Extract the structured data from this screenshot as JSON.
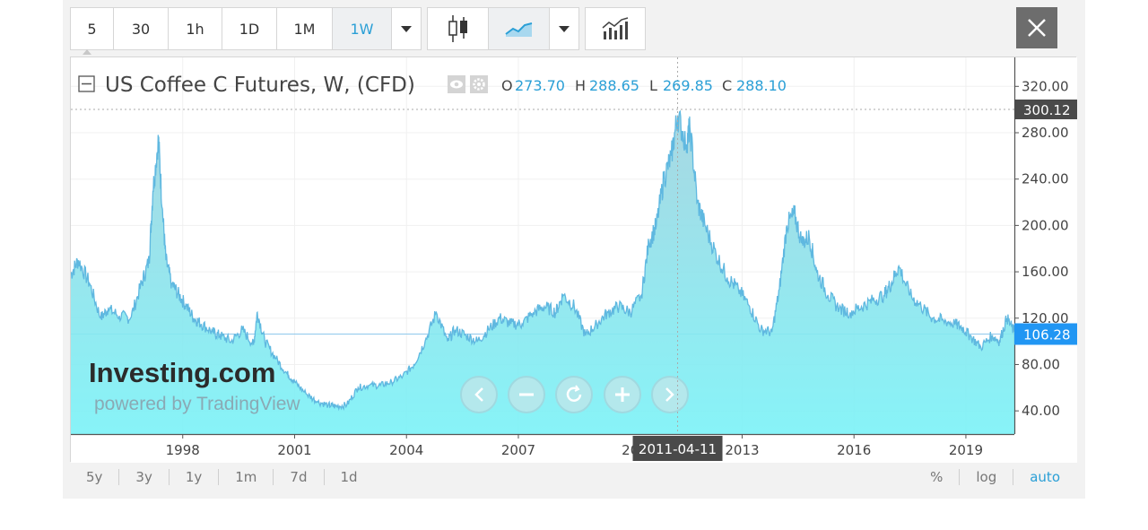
{
  "toolbar": {
    "intervals": [
      "5",
      "30",
      "1h",
      "1D",
      "1M",
      "1W"
    ],
    "active_interval": "1W"
  },
  "legend": {
    "title": "US Coffee C Futures, W, (CFD)",
    "o_label": "O",
    "o_value": "273.70",
    "h_label": "H",
    "h_value": "288.65",
    "l_label": "L",
    "l_value": "269.85",
    "c_label": "C",
    "c_value": "288.10"
  },
  "watermark": {
    "logo": "Investing.com",
    "powered": "powered by TradingView"
  },
  "crosshair": {
    "price_label": "300.12",
    "date_label": "2011-04-11",
    "price": 300.12,
    "date_year": 2011.27
  },
  "last_price": {
    "label": "106.28",
    "value": 106.28
  },
  "bottom_bar": {
    "ranges": [
      "5y",
      "3y",
      "1y",
      "1m",
      "7d",
      "1d"
    ],
    "right": [
      "%",
      "log",
      "auto"
    ],
    "active_right": "auto"
  },
  "colors": {
    "accent": "#2a9fd6",
    "line": "#5fb8e0",
    "fill_top": "#9fd3df",
    "fill_bottom": "#7af2f7",
    "price_tag": "#2196f3",
    "crosshair_tag": "#4a4a4a"
  },
  "chart_data": {
    "type": "area",
    "title": "US Coffee C Futures, W, (CFD)",
    "xlabel": "",
    "ylabel": "",
    "ylim": [
      20,
      345
    ],
    "xlim": [
      1995.0,
      2020.3
    ],
    "y_ticks": [
      40,
      80,
      120,
      160,
      200,
      240,
      280,
      320
    ],
    "y_tick_labels": [
      "40.00",
      "80.00",
      "120.00",
      "160.00",
      "200.00",
      "240.00",
      "280.00",
      "320.00"
    ],
    "x_ticks": [
      1998,
      2001,
      2004,
      2007,
      2013,
      2016,
      2019
    ],
    "x_tick_labels": [
      "1998",
      "2001",
      "2004",
      "2007",
      "2013",
      "2016",
      "2019"
    ],
    "x_partial_label": {
      "x": 2010,
      "text": "20"
    },
    "x": [
      1995.0,
      1995.2,
      1995.5,
      1995.8,
      1996.0,
      1996.3,
      1996.6,
      1996.9,
      1997.1,
      1997.2,
      1997.35,
      1997.45,
      1997.55,
      1997.7,
      1997.9,
      1998.1,
      1998.3,
      1998.5,
      1998.8,
      1999.0,
      1999.3,
      1999.6,
      1999.9,
      2000.0,
      2000.2,
      2000.5,
      2000.8,
      2001.0,
      2001.3,
      2001.6,
      2001.9,
      2002.1,
      2002.4,
      2002.7,
      2003.0,
      2003.3,
      2003.6,
      2003.9,
      2004.2,
      2004.5,
      2004.8,
      2005.1,
      2005.3,
      2005.6,
      2005.9,
      2006.2,
      2006.5,
      2006.8,
      2007.1,
      2007.4,
      2007.7,
      2008.0,
      2008.2,
      2008.5,
      2008.8,
      2009.1,
      2009.4,
      2009.7,
      2010.0,
      2010.3,
      2010.5,
      2010.7,
      2010.9,
      2011.1,
      2011.27,
      2011.5,
      2011.6,
      2011.8,
      2012.0,
      2012.3,
      2012.6,
      2012.9,
      2013.2,
      2013.5,
      2013.8,
      2014.0,
      2014.2,
      2014.4,
      2014.6,
      2014.8,
      2015.0,
      2015.3,
      2015.6,
      2015.9,
      2016.2,
      2016.5,
      2016.8,
      2017.0,
      2017.2,
      2017.5,
      2017.8,
      2018.1,
      2018.4,
      2018.7,
      2018.9,
      2019.1,
      2019.4,
      2019.7,
      2019.9,
      2020.1,
      2020.3
    ],
    "values": [
      158,
      170,
      150,
      120,
      128,
      122,
      120,
      150,
      170,
      230,
      275,
      215,
      170,
      150,
      140,
      130,
      120,
      115,
      108,
      105,
      100,
      110,
      97,
      125,
      100,
      85,
      72,
      65,
      55,
      48,
      45,
      44,
      45,
      60,
      62,
      62,
      65,
      70,
      80,
      100,
      125,
      100,
      110,
      105,
      100,
      110,
      120,
      115,
      115,
      125,
      130,
      125,
      140,
      130,
      105,
      115,
      125,
      130,
      125,
      140,
      185,
      200,
      240,
      260,
      295,
      270,
      285,
      220,
      200,
      175,
      155,
      145,
      130,
      110,
      108,
      145,
      200,
      210,
      185,
      190,
      160,
      140,
      128,
      125,
      130,
      135,
      140,
      150,
      165,
      140,
      130,
      120,
      118,
      115,
      112,
      105,
      95,
      105,
      100,
      120,
      108
    ]
  }
}
